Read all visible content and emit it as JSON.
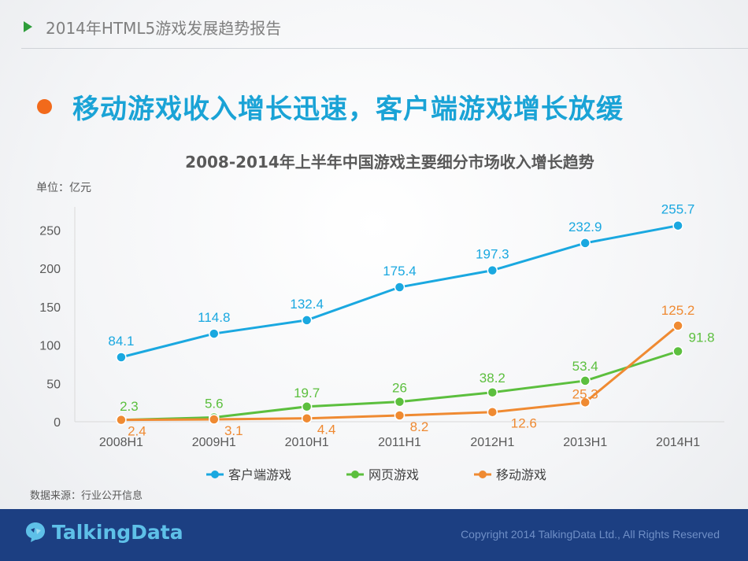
{
  "header": {
    "title": "2014年HTML5游戏发展趋势报告"
  },
  "headline": "移动游戏收入增长迅速，客户端游戏增长放缓",
  "unit_label": "单位：亿元",
  "source_note": "数据来源：行业公开信息",
  "footer": {
    "brand": "TalkingData",
    "copyright": "Copyright 2014 TalkingData Ltd., All Rights Reserved"
  },
  "colors": {
    "accent_blue": "#1aa3d6",
    "bullet_orange": "#f26a1b",
    "footer_bg": "#1c3f82"
  },
  "chart_data": {
    "type": "line",
    "title": "2008-2014年上半年中国游戏主要细分市场收入增长趋势",
    "categories": [
      "2008H1",
      "2009H1",
      "2010H1",
      "2011H1",
      "2012H1",
      "2013H1",
      "2014H1"
    ],
    "yticks": [
      "0",
      "50",
      "100",
      "150",
      "200",
      "250"
    ],
    "ylim": [
      0,
      280
    ],
    "grid": false,
    "legend_position": "bottom",
    "series": [
      {
        "name": "客户端游戏",
        "color": "#1aa8e0",
        "values": [
          84.1,
          114.8,
          132.4,
          175.4,
          197.3,
          232.9,
          255.7
        ],
        "labels": [
          "84.1",
          "114.8",
          "132.4",
          "175.4",
          "197.3",
          "232.9",
          "255.7"
        ]
      },
      {
        "name": "网页游戏",
        "color": "#5cbf3e",
        "values": [
          2.3,
          5.6,
          19.7,
          26,
          38.2,
          53.4,
          91.8
        ],
        "labels": [
          "2.3",
          "5.6",
          "19.7",
          "26",
          "38.2",
          "53.4",
          "91.8"
        ]
      },
      {
        "name": "移动游戏",
        "color": "#ef8a32",
        "values": [
          2.4,
          3.1,
          4.4,
          8.2,
          12.6,
          25.3,
          125.2
        ],
        "labels": [
          "2.4",
          "3.1",
          "4.4",
          "8.2",
          "12.6",
          "25.3",
          "125.2"
        ]
      }
    ]
  }
}
